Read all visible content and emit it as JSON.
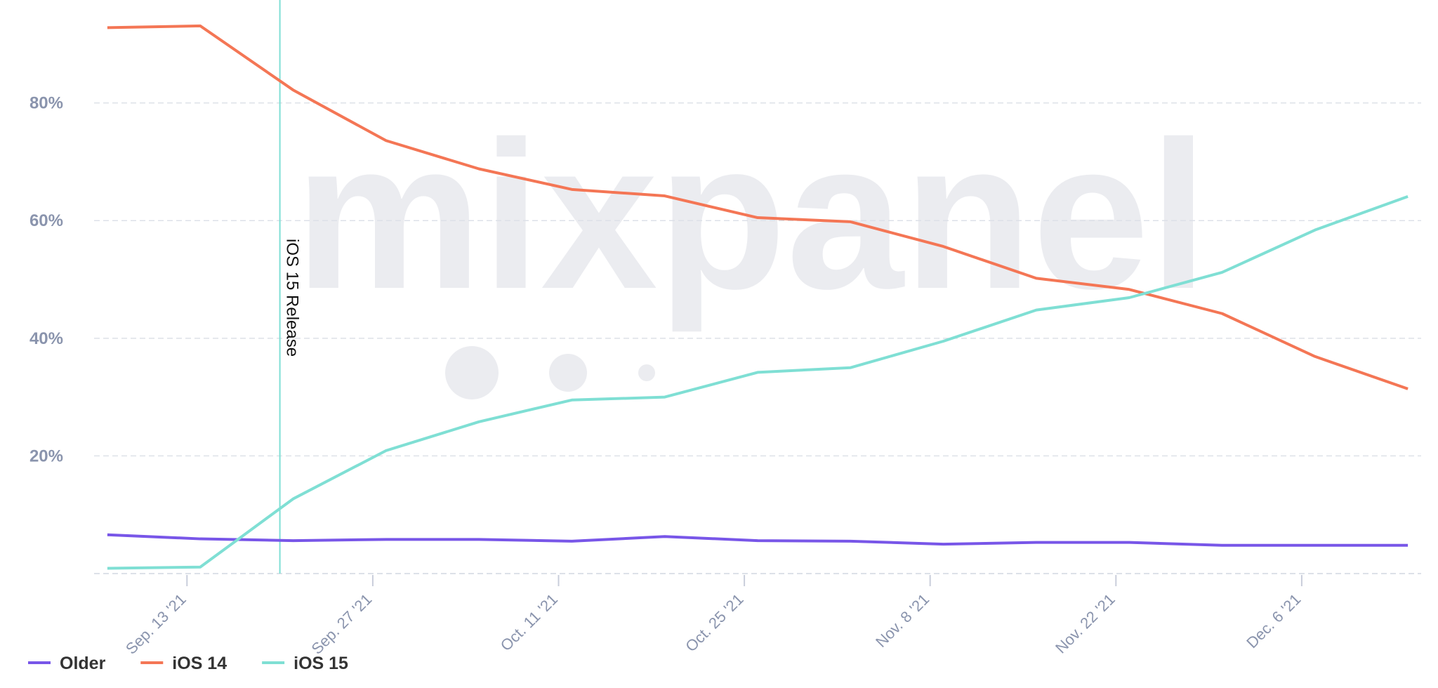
{
  "chart_data": {
    "type": "line",
    "watermark": "mixpanel",
    "x": [
      "2021-09-07",
      "2021-09-14",
      "2021-09-21",
      "2021-09-28",
      "2021-10-05",
      "2021-10-12",
      "2021-10-19",
      "2021-10-26",
      "2021-11-02",
      "2021-11-09",
      "2021-11-16",
      "2021-11-23",
      "2021-11-30",
      "2021-12-07",
      "2021-12-14"
    ],
    "series": [
      {
        "name": "Older",
        "color": "#7856e8",
        "values": [
          6.6,
          5.9,
          5.6,
          5.8,
          5.8,
          5.5,
          6.3,
          5.6,
          5.5,
          5.0,
          5.3,
          5.3,
          4.8,
          4.8,
          4.8
        ]
      },
      {
        "name": "iOS 14",
        "color": "#f47655",
        "values": [
          92.8,
          93.1,
          82.2,
          73.6,
          68.8,
          65.3,
          64.2,
          60.5,
          59.8,
          55.6,
          50.2,
          48.3,
          44.2,
          36.9,
          31.4
        ]
      },
      {
        "name": "iOS 15",
        "color": "#7fdfd4",
        "values": [
          0.9,
          1.1,
          12.7,
          20.9,
          25.8,
          29.5,
          30.0,
          34.2,
          35.0,
          39.5,
          44.8,
          46.9,
          51.2,
          58.4,
          64.1
        ]
      }
    ],
    "xlim": [
      "2021-09-06",
      "2021-12-15"
    ],
    "xticks": [
      {
        "value": "2021-09-13",
        "label": "Sep. 13 '21"
      },
      {
        "value": "2021-09-27",
        "label": "Sep. 27 '21"
      },
      {
        "value": "2021-10-11",
        "label": "Oct. 11 '21"
      },
      {
        "value": "2021-10-25",
        "label": "Oct. 25 '21"
      },
      {
        "value": "2021-11-08",
        "label": "Nov. 8 '21"
      },
      {
        "value": "2021-11-22",
        "label": "Nov. 22 '21"
      },
      {
        "value": "2021-12-06",
        "label": "Dec. 6 '21"
      }
    ],
    "ylim": [
      0,
      97.5
    ],
    "yticks": [
      {
        "value": 20,
        "label": "20%"
      },
      {
        "value": 40,
        "label": "40%"
      },
      {
        "value": 60,
        "label": "60%"
      },
      {
        "value": 80,
        "label": "80%"
      }
    ],
    "grid": true,
    "annotations": [
      {
        "x": "2021-09-20",
        "text": "iOS 15 Release",
        "color": "#7fdfd4"
      }
    ]
  }
}
